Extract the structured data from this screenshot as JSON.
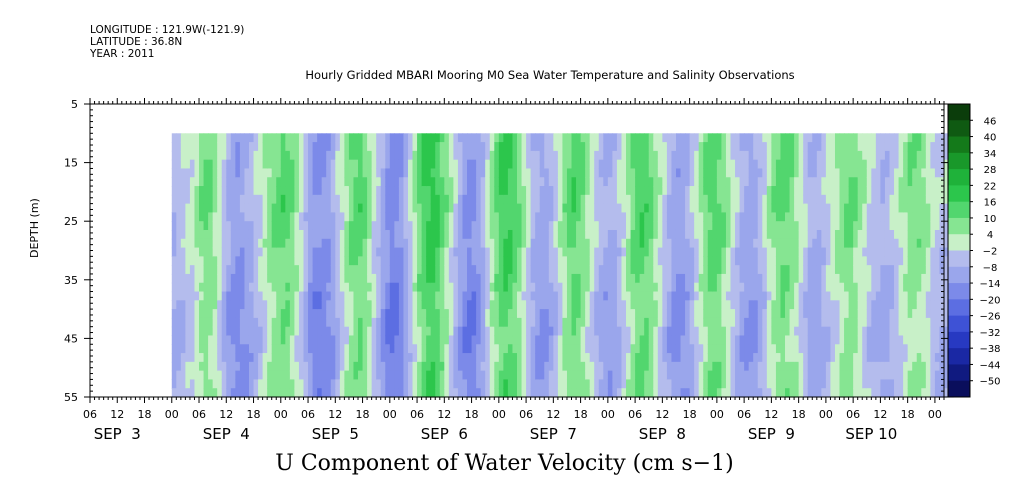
{
  "header": {
    "longitude": "LONGITUDE : 121.9W(-121.9)",
    "latitude": "LATITUDE : 36.8N",
    "year": "YEAR : 2011",
    "title": "Hourly Gridded MBARI Mooring M0 Sea Water Temperature and Salinity Observations"
  },
  "chart_data": {
    "type": "heatmap",
    "title": "Hourly Gridded MBARI Mooring M0 Sea Water Temperature and Salinity Observations",
    "xlabel": "U Component of Water Velocity (cm s−1)",
    "ylabel": "DEPTH (m)",
    "x_hours": [
      -18,
      170
    ],
    "data_x_hours": [
      0,
      172
    ],
    "y_depth_range": [
      5,
      55
    ],
    "data_depth_range": [
      10,
      55
    ],
    "y_inverted": true,
    "y_ticks": [
      "5",
      "15",
      "25",
      "35",
      "45",
      "55"
    ],
    "x_hour_ticks": [
      "06",
      "12",
      "18",
      "00",
      "06",
      "12",
      "18",
      "00",
      "06",
      "12",
      "18",
      "00",
      "06",
      "12",
      "18",
      "00",
      "06",
      "12",
      "18",
      "00",
      "06",
      "12",
      "18",
      "00",
      "06",
      "12",
      "18",
      "00",
      "06",
      "12",
      "18",
      "00"
    ],
    "x_date_labels": [
      {
        "label": "SEP  3",
        "hour": -12
      },
      {
        "label": "SEP  4",
        "hour": 12
      },
      {
        "label": "SEP  5",
        "hour": 36
      },
      {
        "label": "SEP  6",
        "hour": 60
      },
      {
        "label": "SEP  7",
        "hour": 84
      },
      {
        "label": "SEP  8",
        "hour": 108
      },
      {
        "label": "SEP  9",
        "hour": 132
      },
      {
        "label": "SEP 10",
        "hour": 154
      }
    ],
    "colorbar": {
      "labels": [
        "46",
        "40",
        "34",
        "28",
        "22",
        "16",
        "10",
        "4",
        "−2",
        "−8",
        "−14",
        "−20",
        "−26",
        "−32",
        "−38",
        "−44",
        "−50"
      ],
      "colors": [
        "#0b3d0b",
        "#0f5a12",
        "#147a1a",
        "#19982a",
        "#1fb23a",
        "#2cc64c",
        "#52d66e",
        "#86e592",
        "#c8f0c8",
        "#b4bced",
        "#9aa6ec",
        "#7c8ae9",
        "#5c6ee2",
        "#3e52d6",
        "#2739c2",
        "#1a28a4",
        "#101a80",
        "#0a0e5c"
      ]
    },
    "columns_u_cm_s": [
      -8,
      -7,
      -5,
      -3,
      -2,
      2,
      6,
      9,
      7,
      4,
      -1,
      -6,
      -10,
      -13,
      -14,
      -13,
      -11,
      -9,
      -6,
      -3,
      1,
      4,
      7,
      9,
      11,
      10,
      7,
      3,
      -2,
      -8,
      -13,
      -16,
      -17,
      -16,
      -14,
      -11,
      -6,
      -2,
      3,
      8,
      10,
      11,
      8,
      4,
      -2,
      -7,
      -12,
      -16,
      -19,
      -18,
      -15,
      -10,
      -4,
      2,
      8,
      13,
      15,
      16,
      14,
      10,
      5,
      -1,
      -6,
      -11,
      -15,
      -17,
      -16,
      -13,
      -8,
      -2,
      4,
      9,
      13,
      15,
      14,
      11,
      7,
      2,
      -3,
      -8,
      -11,
      -13,
      -12,
      -9,
      -5,
      0,
      5,
      9,
      11,
      10,
      7,
      3,
      -1,
      -5,
      -8,
      -10,
      -11,
      -9,
      -6,
      -2,
      3,
      8,
      11,
      12,
      11,
      8,
      4,
      -1,
      -5,
      -9,
      -12,
      -14,
      -13,
      -11,
      -7,
      -2,
      3,
      7,
      10,
      11,
      9,
      6,
      2,
      -2,
      -6,
      -10,
      -12,
      -13,
      -11,
      -8,
      -4,
      1,
      5,
      8,
      10,
      9,
      7,
      3,
      -1,
      -5,
      -8,
      -10,
      -9,
      -7,
      -4,
      -1,
      2,
      5,
      7,
      8,
      6,
      3,
      0,
      -3,
      -6,
      -8,
      -9,
      -8,
      -6,
      -3,
      0,
      3,
      6,
      7,
      6,
      4,
      1,
      -2,
      -5,
      -7,
      -6,
      -4
    ],
    "depth_profile_shift": [
      2,
      3,
      2,
      0,
      -2,
      -3,
      -1
    ]
  }
}
